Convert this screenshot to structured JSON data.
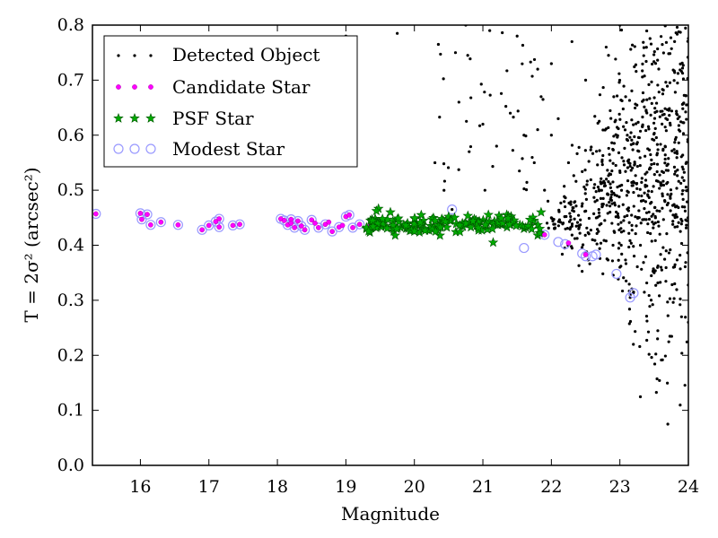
{
  "chart_data": {
    "type": "scatter",
    "xlabel": "Magnitude",
    "ylabel": "T = 2σ² (arcsec²)",
    "xlim": [
      15.3,
      24
    ],
    "ylim": [
      0.0,
      0.8
    ],
    "xticks": [
      "16",
      "17",
      "18",
      "19",
      "20",
      "21",
      "22",
      "23",
      "24"
    ],
    "yticks": [
      "0.0",
      "0.1",
      "0.2",
      "0.3",
      "0.4",
      "0.5",
      "0.6",
      "0.7",
      "0.8"
    ],
    "grid": false,
    "legend_position": "top-left",
    "series": [
      {
        "name": "Detected Object",
        "marker": "dot",
        "color": "#000000",
        "seed": 7,
        "count": 800,
        "points": [
          [
            20.55,
            0.465
          ],
          [
            23.0,
            0.36
          ],
          [
            23.15,
            0.31
          ],
          [
            23.15,
            0.305
          ],
          [
            23.2,
            0.315
          ],
          [
            23.55,
            0.23
          ],
          [
            23.7,
            0.075
          ],
          [
            23.9,
            0.27
          ],
          [
            24.0,
            0.26
          ],
          [
            23.6,
            0.36
          ],
          [
            19.75,
            0.785
          ],
          [
            20.35,
            0.765
          ],
          [
            20.3,
            0.55
          ],
          [
            20.6,
            0.75
          ],
          [
            20.65,
            0.66
          ],
          [
            20.8,
            0.57
          ],
          [
            21.0,
            0.62
          ],
          [
            21.2,
            0.58
          ],
          [
            21.4,
            0.64
          ],
          [
            21.6,
            0.6
          ],
          [
            21.75,
            0.55
          ],
          [
            21.85,
            0.67
          ],
          [
            22.0,
            0.6
          ],
          [
            22.1,
            0.63
          ],
          [
            22.25,
            0.55
          ],
          [
            21.9,
            0.5
          ],
          [
            21.95,
            0.48
          ],
          [
            22.0,
            0.45
          ],
          [
            22.2,
            0.47
          ],
          [
            22.4,
            0.43
          ],
          [
            22.6,
            0.41
          ],
          [
            22.9,
            0.4
          ],
          [
            23.3,
            0.4
          ],
          [
            23.5,
            0.35
          ],
          [
            23.8,
            0.33
          ],
          [
            19.0,
            0.78
          ],
          [
            20.75,
            0.8
          ],
          [
            21.1,
            0.79
          ],
          [
            21.5,
            0.78
          ],
          [
            21.8,
            0.72
          ],
          [
            22.0,
            0.73
          ],
          [
            22.3,
            0.77
          ],
          [
            22.5,
            0.7
          ],
          [
            22.8,
            0.76
          ],
          [
            23.0,
            0.8
          ]
        ]
      },
      {
        "name": "Candidate Star",
        "marker": "circle",
        "color": "#ff00ff",
        "points": [
          [
            15.35,
            0.457
          ],
          [
            16.0,
            0.458
          ],
          [
            16.02,
            0.447
          ],
          [
            16.1,
            0.456
          ],
          [
            16.15,
            0.437
          ],
          [
            16.3,
            0.442
          ],
          [
            16.55,
            0.437
          ],
          [
            16.9,
            0.428
          ],
          [
            17.0,
            0.436
          ],
          [
            17.1,
            0.443
          ],
          [
            17.15,
            0.448
          ],
          [
            17.15,
            0.433
          ],
          [
            17.35,
            0.436
          ],
          [
            17.45,
            0.438
          ],
          [
            18.05,
            0.448
          ],
          [
            18.1,
            0.445
          ],
          [
            18.15,
            0.437
          ],
          [
            18.2,
            0.447
          ],
          [
            18.2,
            0.44
          ],
          [
            18.25,
            0.432
          ],
          [
            18.3,
            0.444
          ],
          [
            18.35,
            0.435
          ],
          [
            18.4,
            0.428
          ],
          [
            18.5,
            0.446
          ],
          [
            18.55,
            0.44
          ],
          [
            18.6,
            0.432
          ],
          [
            18.7,
            0.438
          ],
          [
            18.75,
            0.442
          ],
          [
            18.8,
            0.425
          ],
          [
            18.9,
            0.433
          ],
          [
            18.95,
            0.436
          ],
          [
            19.0,
            0.452
          ],
          [
            19.05,
            0.455
          ],
          [
            19.1,
            0.432
          ],
          [
            19.2,
            0.438
          ],
          [
            19.3,
            0.43
          ],
          [
            19.35,
            0.435
          ],
          [
            21.9,
            0.419
          ],
          [
            22.25,
            0.404
          ],
          [
            22.5,
            0.383
          ]
        ]
      },
      {
        "name": "PSF Star",
        "marker": "star",
        "color": "#00aa00",
        "seed": 11,
        "count": 150,
        "range": [
          19.3,
          21.85
        ],
        "points": [
          [
            19.3,
            0.43
          ],
          [
            19.55,
            0.442
          ],
          [
            19.65,
            0.46
          ],
          [
            19.7,
            0.425
          ],
          [
            19.9,
            0.44
          ],
          [
            20.0,
            0.425
          ],
          [
            20.1,
            0.455
          ],
          [
            20.35,
            0.435
          ],
          [
            20.5,
            0.452
          ],
          [
            20.7,
            0.44
          ],
          [
            20.9,
            0.445
          ],
          [
            21.15,
            0.405
          ],
          [
            21.4,
            0.438
          ],
          [
            21.6,
            0.43
          ],
          [
            21.8,
            0.418
          ],
          [
            21.85,
            0.46
          ]
        ]
      },
      {
        "name": "Modest Star",
        "marker": "open-circle",
        "color": "#9999ff",
        "points": [
          [
            15.35,
            0.457
          ],
          [
            16.0,
            0.458
          ],
          [
            16.02,
            0.447
          ],
          [
            16.1,
            0.456
          ],
          [
            16.15,
            0.437
          ],
          [
            16.3,
            0.442
          ],
          [
            16.55,
            0.437
          ],
          [
            16.9,
            0.428
          ],
          [
            17.0,
            0.436
          ],
          [
            17.1,
            0.443
          ],
          [
            17.15,
            0.448
          ],
          [
            17.15,
            0.433
          ],
          [
            17.35,
            0.436
          ],
          [
            17.45,
            0.438
          ],
          [
            18.05,
            0.448
          ],
          [
            18.1,
            0.445
          ],
          [
            18.15,
            0.437
          ],
          [
            18.2,
            0.447
          ],
          [
            18.25,
            0.432
          ],
          [
            18.3,
            0.444
          ],
          [
            18.35,
            0.435
          ],
          [
            18.4,
            0.428
          ],
          [
            18.5,
            0.446
          ],
          [
            18.6,
            0.432
          ],
          [
            18.7,
            0.438
          ],
          [
            18.8,
            0.425
          ],
          [
            18.9,
            0.433
          ],
          [
            19.0,
            0.452
          ],
          [
            19.05,
            0.455
          ],
          [
            19.1,
            0.432
          ],
          [
            19.2,
            0.438
          ],
          [
            20.55,
            0.465
          ],
          [
            21.6,
            0.395
          ],
          [
            21.9,
            0.419
          ],
          [
            22.1,
            0.406
          ],
          [
            22.2,
            0.402
          ],
          [
            22.45,
            0.385
          ],
          [
            22.5,
            0.38
          ],
          [
            22.6,
            0.38
          ],
          [
            22.65,
            0.383
          ],
          [
            22.95,
            0.348
          ],
          [
            23.15,
            0.305
          ],
          [
            23.2,
            0.313
          ]
        ]
      }
    ],
    "legend": [
      {
        "label": "Detected Object",
        "marker": "dot",
        "color": "#000000"
      },
      {
        "label": "Candidate Star",
        "marker": "circle",
        "color": "#ff00ff"
      },
      {
        "label": "PSF Star",
        "marker": "star",
        "color": "#00aa00"
      },
      {
        "label": "Modest Star",
        "marker": "open-circle",
        "color": "#9999ff"
      }
    ]
  }
}
